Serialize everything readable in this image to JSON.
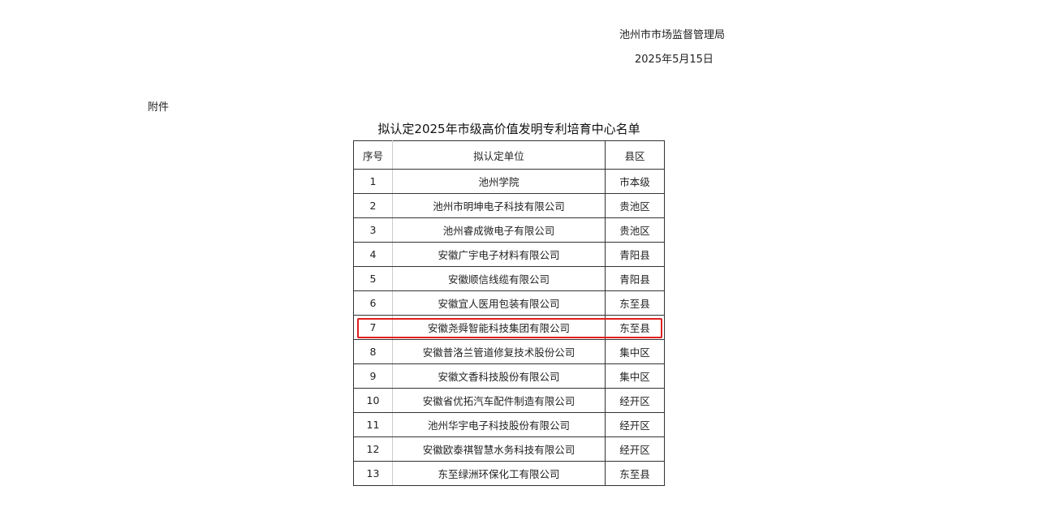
{
  "header": {
    "issuer": "池州市市场监督管理局",
    "date": "2025年5月15日"
  },
  "attachment_label": "附件",
  "table": {
    "title": "拟认定2025年市级高价值发明专利培育中心名单",
    "columns": [
      "序号",
      "拟认定单位",
      "县区"
    ],
    "rows": [
      [
        "1",
        "池州学院",
        "市本级"
      ],
      [
        "2",
        "池州市明坤电子科技有限公司",
        "贵池区"
      ],
      [
        "3",
        "池州睿成微电子有限公司",
        "贵池区"
      ],
      [
        "4",
        "安徽广宇电子材料有限公司",
        "青阳县"
      ],
      [
        "5",
        "安徽顺信线缆有限公司",
        "青阳县"
      ],
      [
        "6",
        "安徽宜人医用包装有限公司",
        "东至县"
      ],
      [
        "7",
        "安徽尧舜智能科技集团有限公司",
        "东至县"
      ],
      [
        "8",
        "安徽普洛兰管道修复技术股份公司",
        "集中区"
      ],
      [
        "9",
        "安徽文香科技股份有限公司",
        "集中区"
      ],
      [
        "10",
        "安徽省优拓汽车配件制造有限公司",
        "经开区"
      ],
      [
        "11",
        "池州华宇电子科技股份有限公司",
        "经开区"
      ],
      [
        "12",
        "安徽欧泰祺智慧水务科技有限公司",
        "经开区"
      ],
      [
        "13",
        "东至绿洲环保化工有限公司",
        "东至县"
      ]
    ],
    "highlighted_row": 7,
    "highlight_color": "#e02020"
  }
}
